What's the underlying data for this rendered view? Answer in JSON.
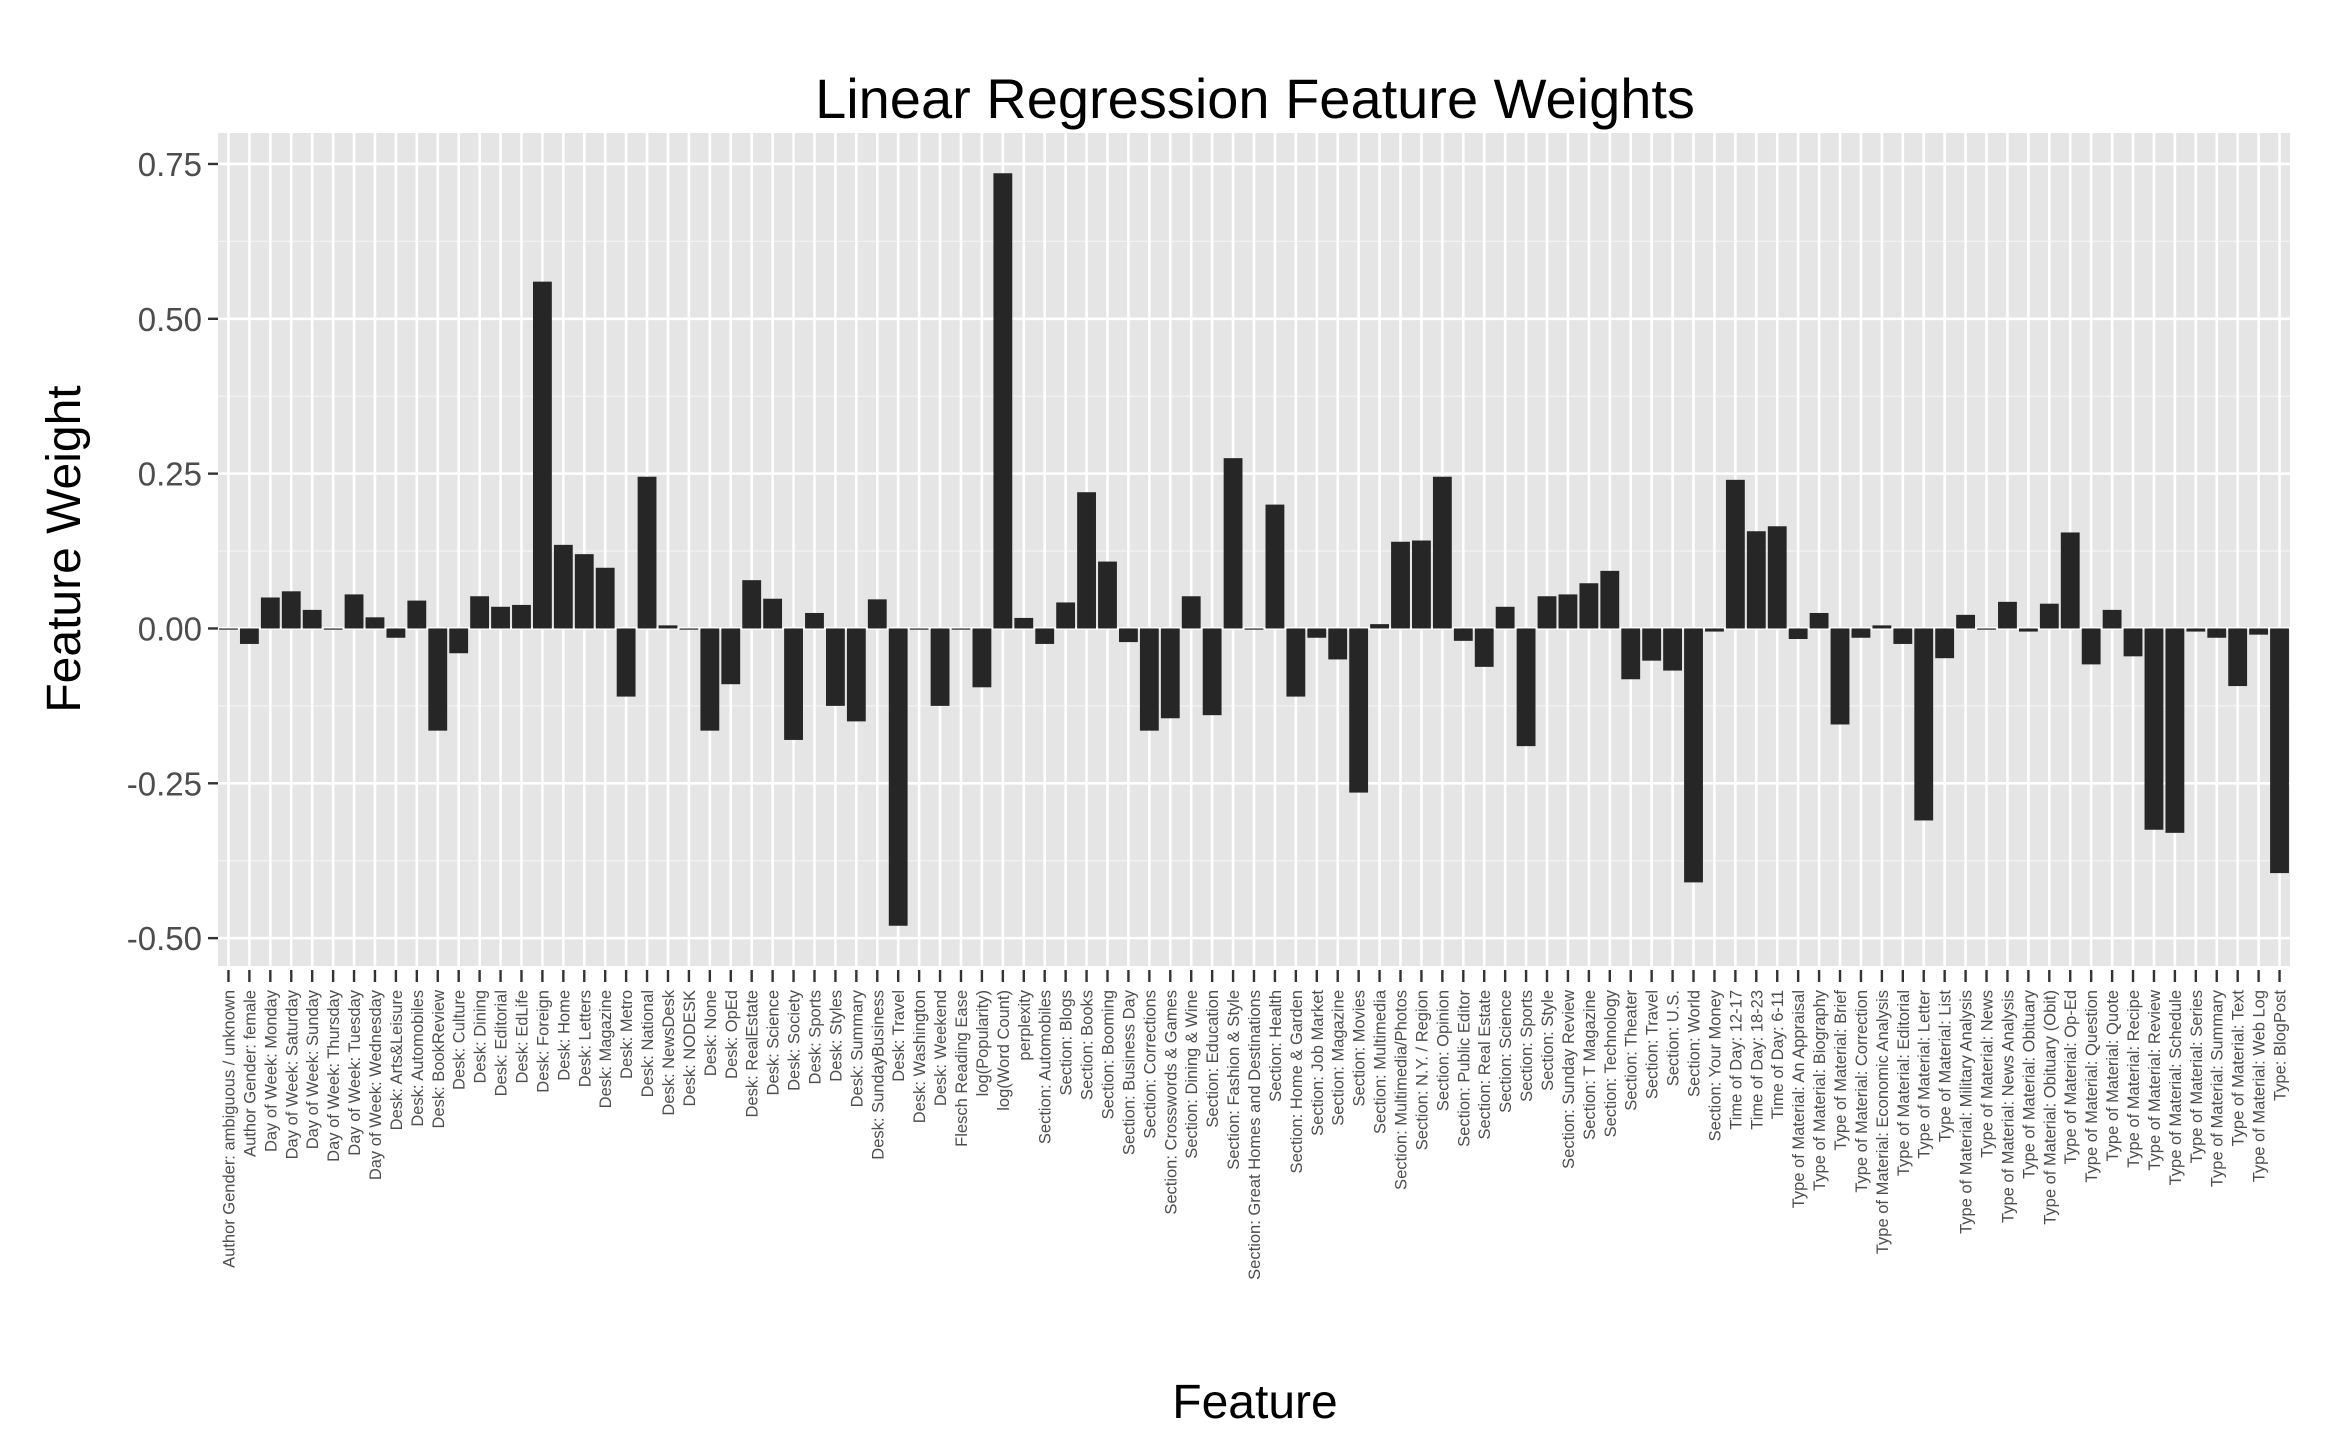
{
  "chart_data": {
    "type": "bar",
    "title": "Linear Regression Feature Weights",
    "xlabel": "Feature",
    "ylabel": "Feature Weight",
    "ylim": [
      -0.545,
      0.8
    ],
    "yticks": [
      -0.5,
      -0.25,
      0.0,
      0.25,
      0.5,
      0.75
    ],
    "ytick_labels": [
      "-0.50",
      "-0.25",
      "0.00",
      "0.25",
      "0.50",
      "0.75"
    ],
    "grid": true,
    "categories": [
      "Author Gender: ambiguous / unknown",
      "Author Gender: female",
      "Day of Week: Monday",
      "Day of Week: Saturday",
      "Day of Week: Sunday",
      "Day of Week: Thursday",
      "Day of Week: Tuesday",
      "Day of Week: Wednesday",
      "Desk: Arts&Leisure",
      "Desk: Automobiles",
      "Desk: BookReview",
      "Desk: Culture",
      "Desk: Dining",
      "Desk: Editorial",
      "Desk: EdLife",
      "Desk: Foreign",
      "Desk: Home",
      "Desk: Letters",
      "Desk: Magazine",
      "Desk: Metro",
      "Desk: National",
      "Desk: NewsDesk",
      "Desk: NODESK",
      "Desk: None",
      "Desk: OpEd",
      "Desk: RealEstate",
      "Desk: Science",
      "Desk: Society",
      "Desk: Sports",
      "Desk: Styles",
      "Desk: Summary",
      "Desk: SundayBusiness",
      "Desk: Travel",
      "Desk: Washington",
      "Desk: Weekend",
      "Flesch Reading Ease",
      "log(Popularity)",
      "log(Word Count)",
      "perplexity",
      "Section: Automobiles",
      "Section: Blogs",
      "Section: Books",
      "Section: Booming",
      "Section: Business Day",
      "Section: Corrections",
      "Section: Crosswords & Games",
      "Section: Dining & Wine",
      "Section: Education",
      "Section: Fashion & Style",
      "Section: Great Homes and Destinations",
      "Section: Health",
      "Section: Home & Garden",
      "Section: Job Market",
      "Section: Magazine",
      "Section: Movies",
      "Section: Multimedia",
      "Section: Multimedia/Photos",
      "Section: N.Y. / Region",
      "Section: Opinion",
      "Section: Public Editor",
      "Section: Real Estate",
      "Section: Science",
      "Section: Sports",
      "Section: Style",
      "Section: Sunday Review",
      "Section: T Magazine",
      "Section: Technology",
      "Section: Theater",
      "Section: Travel",
      "Section: U.S.",
      "Section: World",
      "Section: Your Money",
      "Time of Day: 12-17",
      "Time of Day: 18-23",
      "Time of Day: 6-11",
      "Type of Material: An Appraisal",
      "Type of Material: Biography",
      "Type of Material: Brief",
      "Type of Material: Correction",
      "Type of Material: Economic Analysis",
      "Type of Material: Editorial",
      "Type of Material: Letter",
      "Type of Material: List",
      "Type of Material: Military Analysis",
      "Type of Material: News",
      "Type of Material: News Analysis",
      "Type of Material: Obituary",
      "Type of Material: Obituary (Obit)",
      "Type of Material: Op-Ed",
      "Type of Material: Question",
      "Type of Material: Quote",
      "Type of Material: Recipe",
      "Type of Material: Review",
      "Type of Material: Schedule",
      "Type of Material: Series",
      "Type of Material: Summary",
      "Type of Material: Text",
      "Type of Material: Web Log",
      "Type: BlogPost"
    ],
    "values": [
      0.0,
      -0.025,
      0.05,
      0.06,
      0.03,
      0.0,
      0.055,
      0.018,
      -0.015,
      0.045,
      -0.165,
      -0.04,
      0.052,
      0.035,
      0.038,
      0.56,
      0.135,
      0.12,
      0.098,
      -0.11,
      0.245,
      0.005,
      0.0,
      -0.165,
      -0.09,
      0.078,
      0.048,
      -0.18,
      0.025,
      -0.125,
      -0.15,
      0.047,
      -0.48,
      0.0,
      -0.125,
      0.0,
      -0.095,
      0.735,
      0.017,
      -0.025,
      0.042,
      0.22,
      0.108,
      -0.022,
      -0.165,
      -0.145,
      0.052,
      -0.14,
      0.275,
      0.0,
      0.2,
      -0.11,
      -0.015,
      -0.05,
      -0.265,
      0.007,
      0.14,
      0.142,
      0.245,
      -0.02,
      -0.062,
      0.035,
      -0.19,
      0.052,
      0.055,
      0.073,
      0.093,
      -0.082,
      -0.052,
      -0.068,
      -0.41,
      -0.005,
      0.24,
      0.157,
      0.165,
      -0.017,
      0.025,
      -0.155,
      -0.015,
      0.005,
      -0.025,
      -0.31,
      -0.048,
      0.022,
      0.0,
      0.043,
      -0.005,
      0.04,
      0.155,
      -0.058,
      0.03,
      -0.045,
      -0.325,
      -0.33,
      -0.005,
      -0.015,
      -0.093,
      -0.01,
      -0.395
    ]
  }
}
